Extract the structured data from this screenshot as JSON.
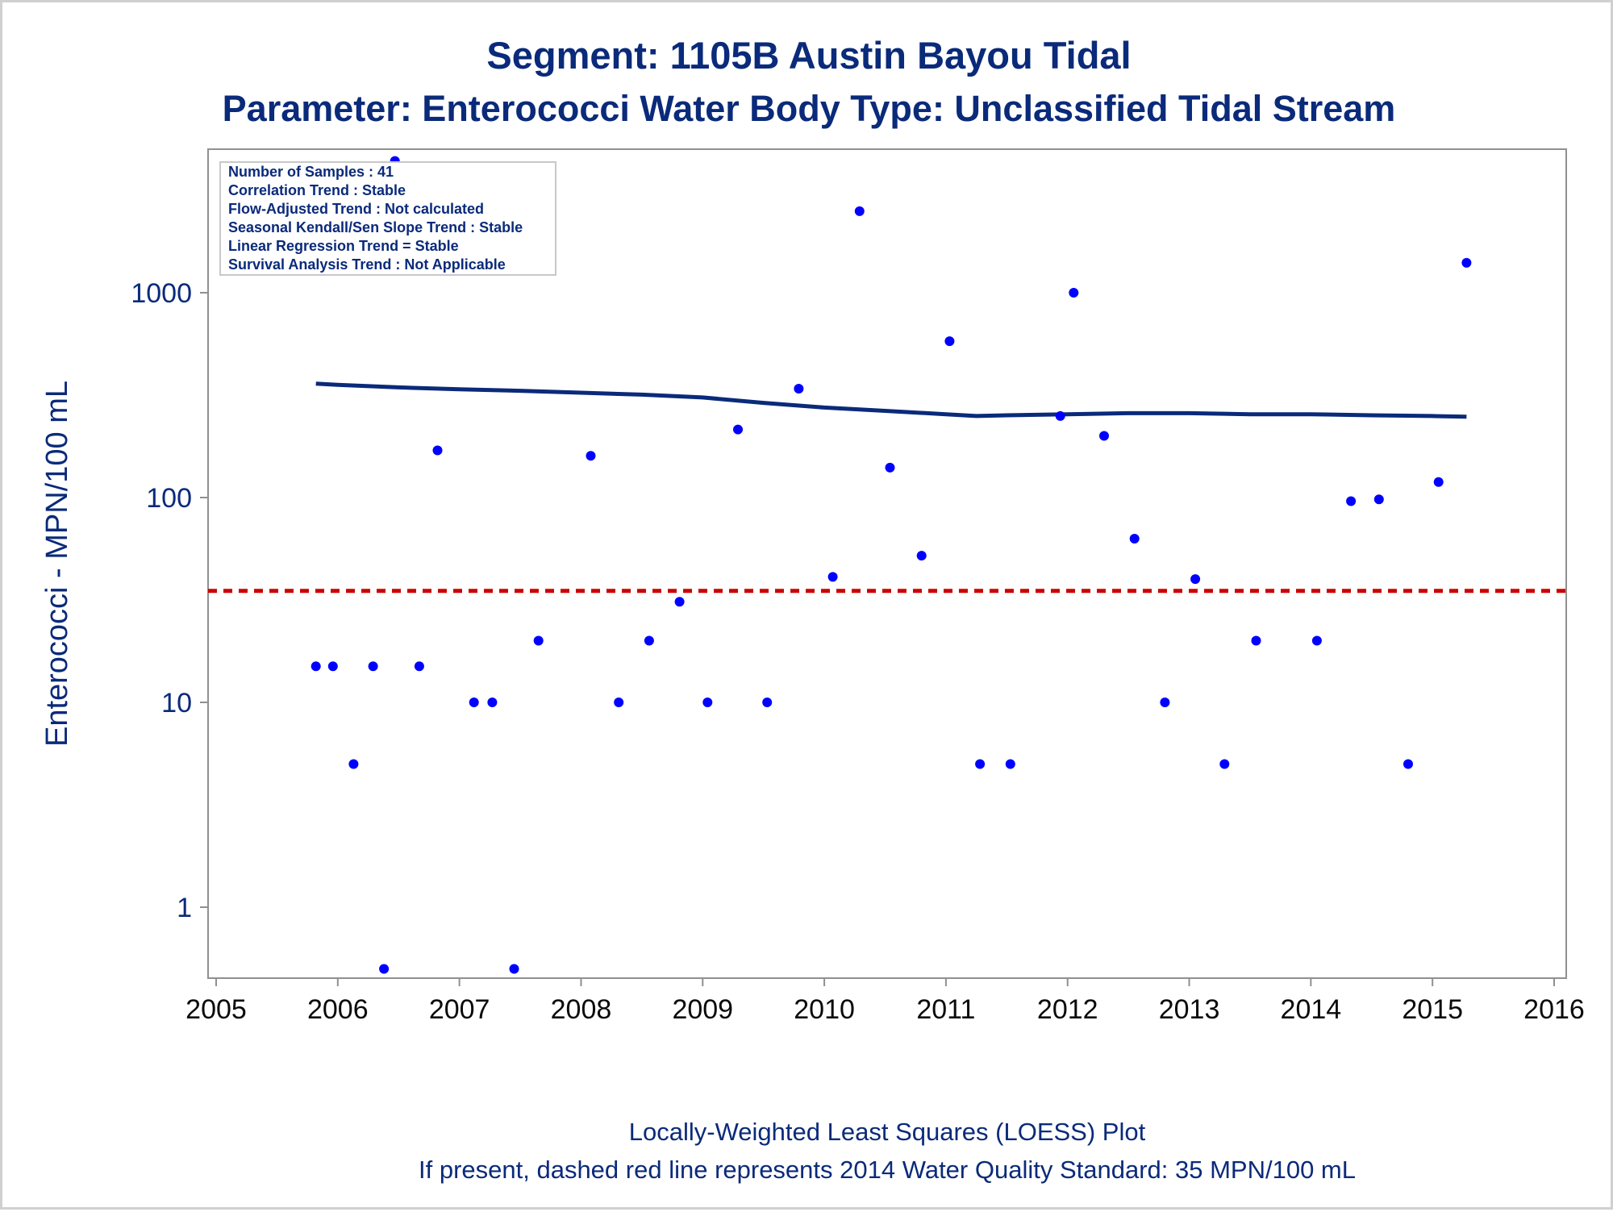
{
  "chart_data": {
    "type": "scatter",
    "title": "Segment: 1105B  Austin Bayou Tidal",
    "subtitle": "Parameter: Enterococci   Water Body Type: Unclassified Tidal Stream",
    "xlabel": "",
    "ylabel": "Enterococci - MPN/100 mL",
    "yscale": "log",
    "xlim": [
      2005,
      2016
    ],
    "ylim": [
      0.5,
      5000
    ],
    "x_ticks": [
      "2005",
      "2006",
      "2007",
      "2008",
      "2009",
      "2010",
      "2011",
      "2012",
      "2013",
      "2014",
      "2015",
      "2016"
    ],
    "y_ticks": [
      "1",
      "10",
      "100",
      "1000"
    ],
    "grid": false,
    "stats_box": {
      "placement": "top-left",
      "lines": [
        "Number of Samples : 41",
        "Correlation Trend : Stable",
        "Flow-Adjusted Trend : Not calculated",
        "Seasonal Kendall/Sen Slope Trend : Stable",
        "Linear Regression Trend = Stable",
        "Survival Analysis Trend : Not Applicable"
      ]
    },
    "footnotes": [
      "Locally-Weighted Least Squares (LOESS) Plot",
      "If present, dashed red line represents 2014 Water Quality Standard: 35 MPN/100 mL"
    ],
    "standard_line": {
      "y": 35,
      "color": "#cc0000",
      "style": "dashed"
    },
    "series": [
      {
        "kind": "points",
        "color": "#0000ff",
        "x": [
          2005.82,
          2005.96,
          2006.13,
          2006.29,
          2006.38,
          2006.47,
          2006.67,
          2006.82,
          2007.12,
          2007.27,
          2007.45,
          2007.65,
          2008.08,
          2008.31,
          2008.56,
          2008.81,
          2009.04,
          2009.29,
          2009.53,
          2009.79,
          2010.07,
          2010.29,
          2010.54,
          2010.8,
          2011.03,
          2011.28,
          2011.53,
          2011.94,
          2012.05,
          2012.3,
          2012.55,
          2012.8,
          2013.05,
          2013.29,
          2013.55,
          2014.05,
          2014.33,
          2014.56,
          2014.8,
          2015.05,
          2015.28
        ],
        "y": [
          15,
          15,
          5,
          15,
          0.5,
          4400,
          15,
          170,
          10,
          10,
          0.5,
          20,
          160,
          10,
          20,
          31,
          10,
          215,
          10,
          340,
          41,
          2500,
          140,
          52,
          580,
          5,
          5,
          250,
          1000,
          200,
          63,
          10,
          40,
          5,
          20,
          20,
          96,
          98,
          5,
          119,
          1400
        ]
      },
      {
        "kind": "loess",
        "color": "#0a2a7a",
        "x": [
          2005.82,
          2006.0,
          2006.5,
          2007.0,
          2007.5,
          2008.0,
          2008.5,
          2009.0,
          2009.5,
          2010.0,
          2010.5,
          2011.0,
          2011.25,
          2011.5,
          2012.0,
          2012.5,
          2013.0,
          2013.5,
          2014.0,
          2014.5,
          2015.0,
          2015.28
        ],
        "y": [
          360,
          355,
          345,
          338,
          332,
          325,
          318,
          308,
          290,
          275,
          265,
          255,
          250,
          252,
          255,
          258,
          258,
          255,
          255,
          252,
          250,
          248
        ]
      }
    ]
  }
}
